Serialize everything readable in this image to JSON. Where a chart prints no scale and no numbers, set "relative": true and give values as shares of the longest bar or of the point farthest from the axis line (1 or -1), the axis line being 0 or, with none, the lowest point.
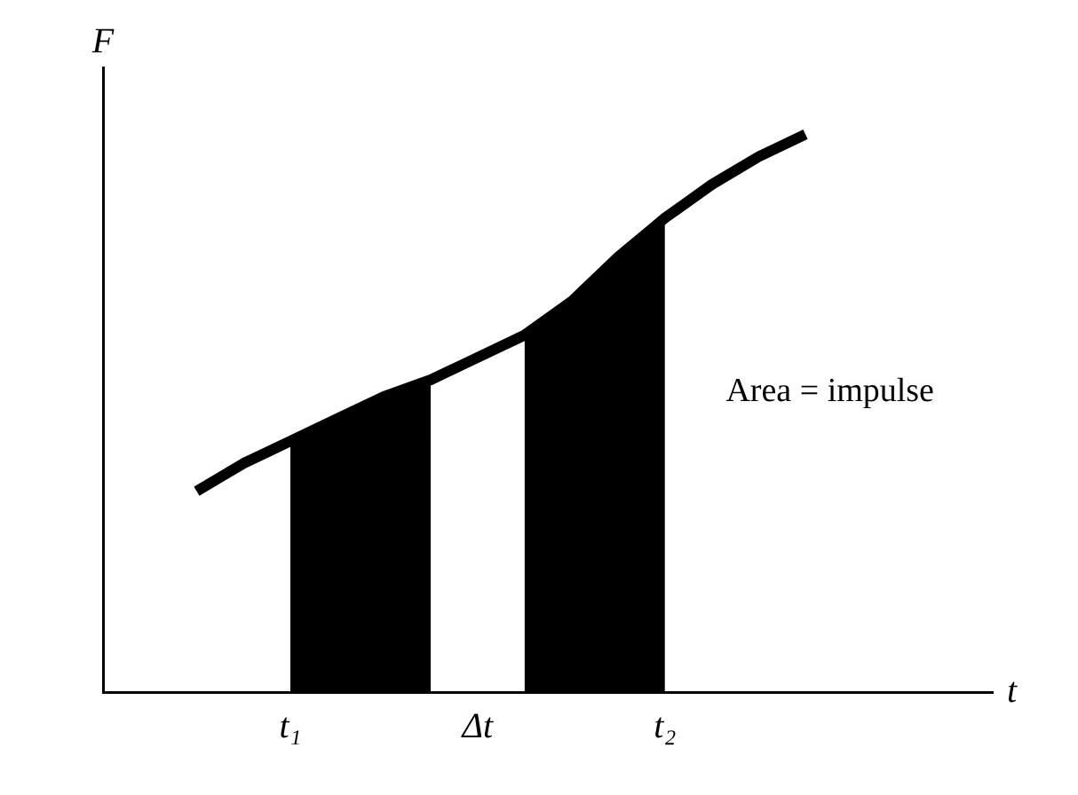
{
  "chart_data": {
    "type": "line",
    "relative": true,
    "xlabel": "t",
    "ylabel": "F",
    "annotations": [
      "Area = impulse"
    ],
    "categories": [
      null,
      null,
      null,
      null,
      "t₁",
      null,
      null,
      null,
      "Δt",
      null,
      null,
      null,
      "t₂",
      null,
      null,
      null,
      null,
      null,
      null,
      null
    ],
    "series": [
      {
        "type": "area",
        "color": "#000000",
        "values": [
          null,
          null,
          null,
          null,
          0.45,
          0.49,
          0.53,
          0.56,
          null,
          null,
          null,
          null,
          null,
          null,
          null,
          null,
          null,
          null,
          null,
          null
        ]
      },
      {
        "type": "area",
        "color": "#000000",
        "values": [
          null,
          null,
          null,
          null,
          null,
          null,
          null,
          null,
          null,
          0.64,
          0.7,
          0.78,
          0.85,
          null,
          null,
          null,
          null,
          null,
          null,
          null
        ]
      },
      {
        "type": "line",
        "color": "#000000",
        "values": [
          null,
          null,
          0.36,
          0.41,
          0.45,
          0.49,
          0.53,
          0.56,
          0.6,
          0.64,
          0.7,
          0.78,
          0.85,
          0.91,
          0.96,
          1.0,
          null,
          null,
          null,
          null
        ]
      }
    ],
    "marker": "none",
    "grid": false,
    "legend": false,
    "tick_labels": "x"
  }
}
